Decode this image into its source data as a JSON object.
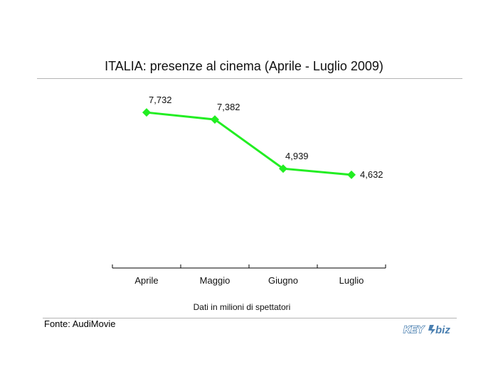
{
  "chart_data": {
    "type": "line",
    "title": "ITALIA: presenze al cinema (Aprile - Luglio 2009)",
    "categories": [
      "Aprile",
      "Maggio",
      "Giugno",
      "Luglio"
    ],
    "series": [
      {
        "values": [
          7.732,
          7.382,
          4.939,
          4.632
        ],
        "labels": [
          "7,732",
          "7,382",
          "4,939",
          "4,632"
        ]
      }
    ],
    "ylim": [
      0,
      10
    ],
    "grid": false,
    "colors": {
      "line": "#22ee22",
      "marker": "#22ee22"
    }
  },
  "note": "Dati in milioni di spettatori",
  "source": "Fonte: AudiMovie",
  "logo": {
    "text_left": "KEY",
    "text_right": "biz",
    "color": "#4a7fb0"
  }
}
